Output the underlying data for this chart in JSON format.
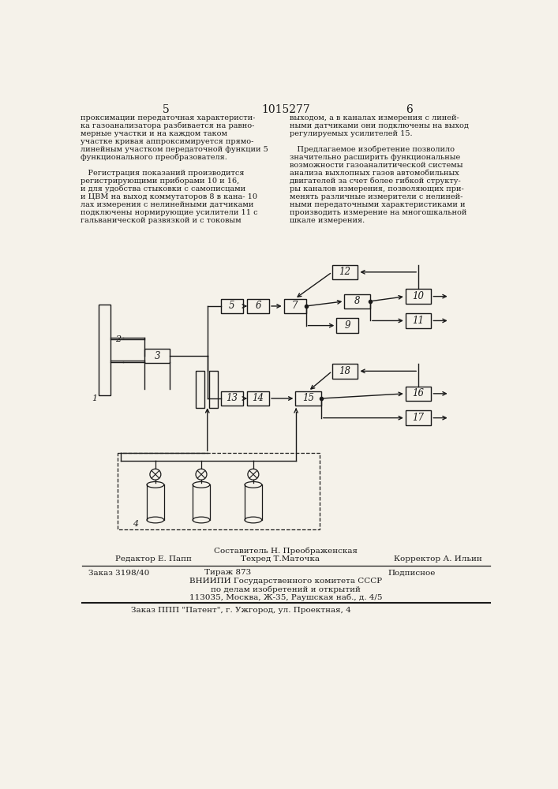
{
  "page_number_left": "5",
  "patent_number": "1015277",
  "page_number_right": "6",
  "bg_color": "#f5f2ea",
  "text_color": "#1a1a1a",
  "left_column_text": [
    "проксимации передаточная характеристи-",
    "ка газоанализатора разбивается на равно-",
    "мерные участки и на каждом таком",
    "участке кривая аппроксимируется прямо-",
    "линейным участком передаточной функции 5",
    "функционального преобразователя.",
    "",
    "   Регистрация показаний производится",
    "регистрирующими приборами 10 и 16,",
    "и для удобства стыковки с самописцами",
    "и ЦВМ на выход коммутаторов 8 в кана- 10",
    "лах измерения с нелинейными датчиками",
    "подключены нормирующие усилители 11 с",
    "гальванической развязкой и с токовым"
  ],
  "right_column_text": [
    "выходом, а в каналах измерения с линей-",
    "ными датчиками они подключены на выход",
    "регулируемых усилителей 15.",
    "",
    "   Предлагаемое изобретение позволило",
    "значительно расширить функциональные",
    "возможности газоаналитической системы",
    "анализа выхлопных газов автомобильных",
    "двигателей за счет более гибкой структу-",
    "ры каналов измерения, позволяющих при-",
    "менять различные измерители с нелиней-",
    "ными передаточными характеристиками и",
    "производить измерение на многошкальной",
    "шкале измерения."
  ],
  "footer_sestavitel": "Составитель Н. Преображенская",
  "footer_redaktor": "Редактор Е. Папп",
  "footer_tehred": "Техред Т.Маточка",
  "footer_korrektor": "Корректор А. Ильин",
  "footer_order": "Заказ 3198/40",
  "footer_tirazh": "Тираж 873",
  "footer_podpisnoe": "Подписное",
  "footer_vniip": "ВНИИПИ Государственного комитета СССР",
  "footer_dela": "по делам изобретений и открытий",
  "footer_address": "113035, Москва, Ж-35, Раушская наб., д. 4/5",
  "footer_patent": "Заказ ППП \"Патент\", г. Ужгород, ул. Проектная, 4"
}
